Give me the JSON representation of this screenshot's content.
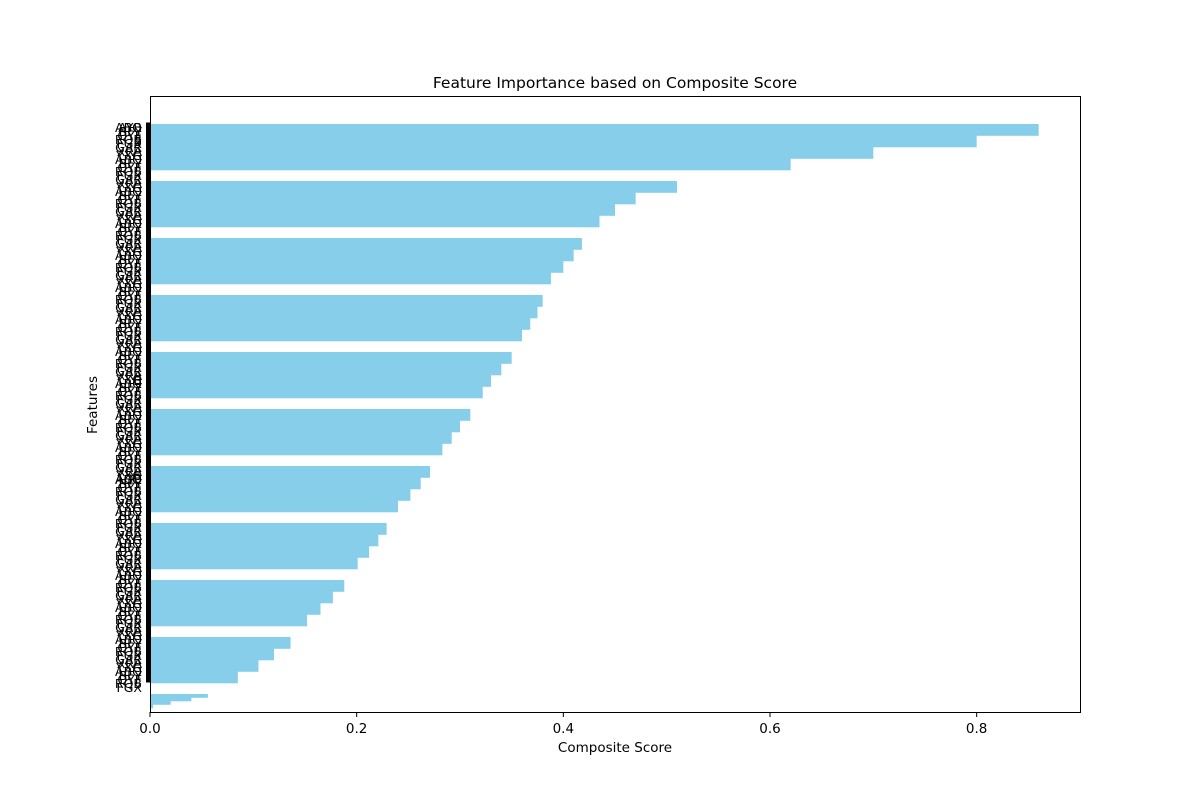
{
  "chart_data": {
    "type": "bar",
    "orientation": "horizontal",
    "title": "Feature Importance based on Composite Score",
    "xlabel": "Composite Score",
    "ylabel": "Features",
    "xlim": [
      0,
      0.9
    ],
    "xticks": [
      0.0,
      0.2,
      0.4,
      0.6,
      0.8
    ],
    "xtick_labels": [
      "0.0",
      "0.2",
      "0.4",
      "0.6",
      "0.8"
    ],
    "bar_color": "#87CEEB",
    "legend": "none",
    "grid": false,
    "feature_count": 380,
    "visible_category_fragments": [
      "AYB",
      "B",
      "B",
      "AQB"
    ],
    "score_profile": [
      [
        0.86,
        0.8,
        0.7,
        0.62
      ],
      [
        0.51,
        0.47,
        0.45,
        0.435
      ],
      [
        0.418,
        0.41,
        0.4,
        0.388
      ],
      [
        0.38,
        0.375,
        0.368,
        0.36
      ],
      [
        0.35,
        0.34,
        0.33,
        0.322
      ],
      [
        0.31,
        0.3,
        0.292,
        0.283
      ],
      [
        0.271,
        0.262,
        0.252,
        0.24
      ],
      [
        0.229,
        0.221,
        0.212,
        0.201
      ],
      [
        0.188,
        0.177,
        0.165,
        0.152
      ],
      [
        0.136,
        0.12,
        0.105,
        0.085
      ],
      [
        0.056,
        0.04,
        0.02,
        0.003
      ]
    ]
  }
}
